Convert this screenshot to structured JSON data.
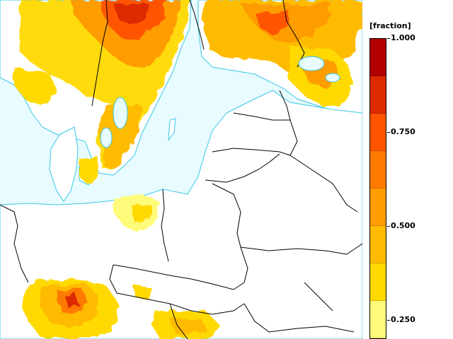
{
  "map": {
    "water_color": "#e8fbff",
    "land_color": "#ffffff",
    "border_color": "#000000",
    "coast_color": "#37c7e6",
    "field_colors": [
      "#fffb7a",
      "#ffd900",
      "#ffbb00",
      "#ff9c00",
      "#ff7a00",
      "#ff5500",
      "#dd2a00",
      "#b30000"
    ]
  },
  "legend": {
    "title": "[fraction]",
    "ticks": [
      "1.000",
      "0.750",
      "0.500",
      "0.250"
    ],
    "tick_values": [
      1.0,
      0.75,
      0.5,
      0.25
    ],
    "colors": [
      "#b30000",
      "#dd2a00",
      "#ff5500",
      "#ff7a00",
      "#ff9c00",
      "#ffbb00",
      "#ffd900",
      "#fffb7a"
    ]
  }
}
